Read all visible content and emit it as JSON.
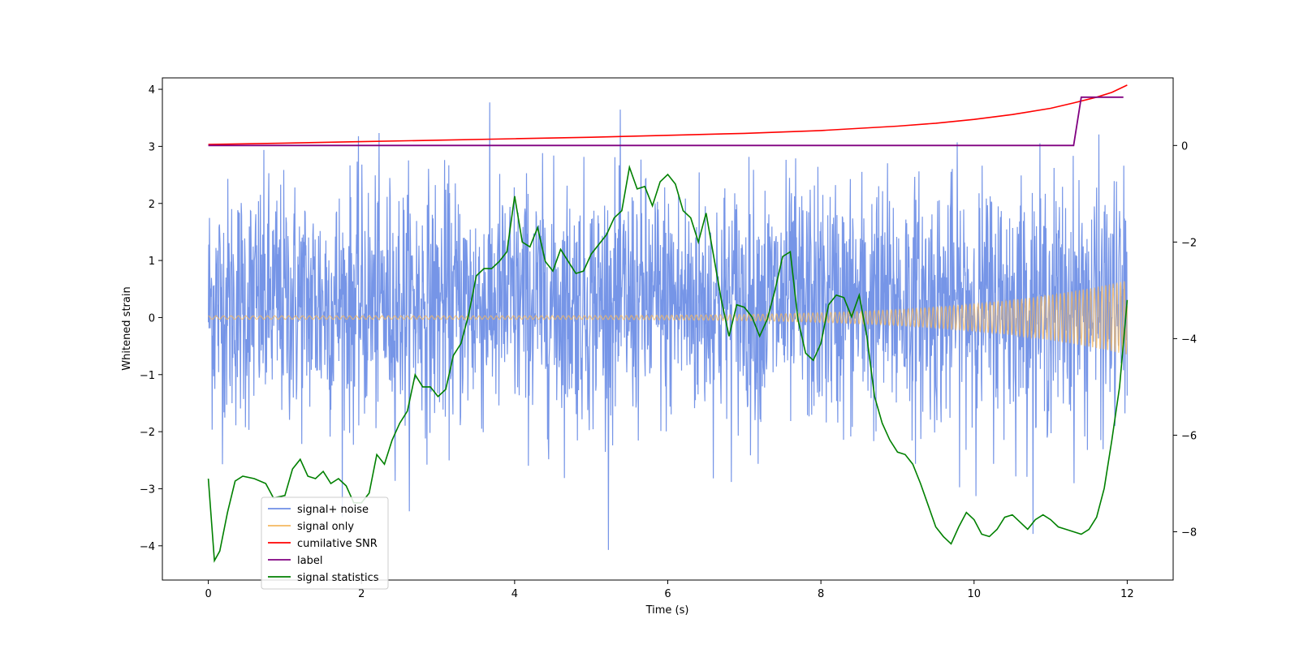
{
  "chart_data": {
    "type": "line",
    "title": "",
    "xlabel": "Time (s)",
    "ylabel": "Whitened strain",
    "y2label": "",
    "xlim": [
      -0.6,
      12.6
    ],
    "ylim": [
      -4.6,
      4.2
    ],
    "y2lim": [
      -9.0,
      1.4
    ],
    "x_ticks": [
      0,
      2,
      4,
      6,
      8,
      10,
      12
    ],
    "y_ticks": [
      -4,
      -3,
      -2,
      -1,
      0,
      1,
      2,
      3,
      4
    ],
    "y2_ticks": [
      -8,
      -6,
      -4,
      -2,
      0
    ],
    "grid": false,
    "legend_position": "lower-left",
    "colors": {
      "signal_noise": "#6f8fe6",
      "signal_only": "#f5b860",
      "snr": "#ff0000",
      "label": "#800080",
      "statistics": "#008000"
    },
    "series": [
      {
        "name": "signal+ noise",
        "axis": "left",
        "x_range": [
          0,
          12
        ],
        "typical_band": [
          -1.9,
          2.4
        ],
        "peak_max": 3.8,
        "peak_min": -4.15
      },
      {
        "name": "signal only",
        "axis": "left",
        "x_range": [
          0,
          12
        ],
        "amplitude_start": 0.03,
        "amplitude_end": 0.65
      },
      {
        "name": "cumilative SNR",
        "axis": "right",
        "x": [
          0,
          1,
          2,
          3,
          4,
          5,
          6,
          7,
          8,
          9,
          9.5,
          10,
          10.5,
          11,
          11.3,
          11.6,
          11.8,
          12
        ],
        "y": [
          0.02,
          0.05,
          0.08,
          0.11,
          0.14,
          0.17,
          0.21,
          0.25,
          0.31,
          0.4,
          0.46,
          0.54,
          0.64,
          0.77,
          0.88,
          1.0,
          1.1,
          1.25
        ]
      },
      {
        "name": "label",
        "axis": "right",
        "x": [
          0,
          11.3,
          11.4,
          11.95
        ],
        "y": [
          0,
          0,
          1.0,
          1.0
        ]
      },
      {
        "name": "signal statistics",
        "axis": "right",
        "x": [
          0,
          0.08,
          0.15,
          0.25,
          0.35,
          0.45,
          0.6,
          0.75,
          0.85,
          1.0,
          1.1,
          1.2,
          1.3,
          1.4,
          1.5,
          1.6,
          1.7,
          1.8,
          1.9,
          2.0,
          2.1,
          2.2,
          2.3,
          2.4,
          2.5,
          2.6,
          2.7,
          2.8,
          2.9,
          3.0,
          3.1,
          3.2,
          3.3,
          3.4,
          3.5,
          3.6,
          3.7,
          3.8,
          3.9,
          4.0,
          4.1,
          4.2,
          4.3,
          4.4,
          4.5,
          4.6,
          4.7,
          4.8,
          4.9,
          5.0,
          5.1,
          5.2,
          5.3,
          5.4,
          5.5,
          5.6,
          5.7,
          5.8,
          5.9,
          6.0,
          6.1,
          6.2,
          6.3,
          6.4,
          6.5,
          6.6,
          6.7,
          6.8,
          6.9,
          7.0,
          7.1,
          7.2,
          7.3,
          7.4,
          7.5,
          7.6,
          7.7,
          7.8,
          7.9,
          8.0,
          8.1,
          8.2,
          8.3,
          8.4,
          8.5,
          8.6,
          8.7,
          8.8,
          8.9,
          9.0,
          9.1,
          9.2,
          9.3,
          9.4,
          9.5,
          9.6,
          9.7,
          9.8,
          9.9,
          10.0,
          10.1,
          10.2,
          10.3,
          10.4,
          10.5,
          10.6,
          10.7,
          10.8,
          10.9,
          11.0,
          11.1,
          11.2,
          11.3,
          11.4,
          11.5,
          11.6,
          11.7,
          11.8,
          11.9,
          12.0
        ],
        "y": [
          -6.9,
          -8.6,
          -8.4,
          -7.6,
          -6.95,
          -6.85,
          -6.9,
          -7.0,
          -7.3,
          -7.25,
          -6.7,
          -6.5,
          -6.85,
          -6.9,
          -6.75,
          -7.0,
          -6.9,
          -7.05,
          -7.4,
          -7.4,
          -7.2,
          -6.4,
          -6.6,
          -6.1,
          -5.75,
          -5.5,
          -4.75,
          -5.0,
          -5.0,
          -5.2,
          -5.05,
          -4.35,
          -4.1,
          -3.5,
          -2.7,
          -2.55,
          -2.55,
          -2.4,
          -2.2,
          -1.05,
          -2.0,
          -2.1,
          -1.7,
          -2.4,
          -2.6,
          -2.15,
          -2.4,
          -2.65,
          -2.6,
          -2.25,
          -2.05,
          -1.85,
          -1.5,
          -1.35,
          -0.45,
          -0.9,
          -0.85,
          -1.25,
          -0.75,
          -0.6,
          -0.8,
          -1.35,
          -1.5,
          -2.0,
          -1.4,
          -2.3,
          -3.2,
          -3.95,
          -3.3,
          -3.35,
          -3.55,
          -3.95,
          -3.6,
          -3.0,
          -2.3,
          -2.2,
          -3.6,
          -4.3,
          -4.45,
          -4.1,
          -3.3,
          -3.1,
          -3.15,
          -3.55,
          -3.1,
          -3.95,
          -5.2,
          -5.75,
          -6.1,
          -6.35,
          -6.4,
          -6.6,
          -7.0,
          -7.45,
          -7.9,
          -8.1,
          -8.25,
          -7.9,
          -7.6,
          -7.75,
          -8.05,
          -8.1,
          -7.95,
          -7.7,
          -7.65,
          -7.8,
          -7.95,
          -7.75,
          -7.65,
          -7.75,
          -7.9,
          -7.95,
          -8.0,
          -8.05,
          -7.95,
          -7.7,
          -7.1,
          -6.1,
          -5.0,
          -3.2
        ]
      }
    ]
  }
}
